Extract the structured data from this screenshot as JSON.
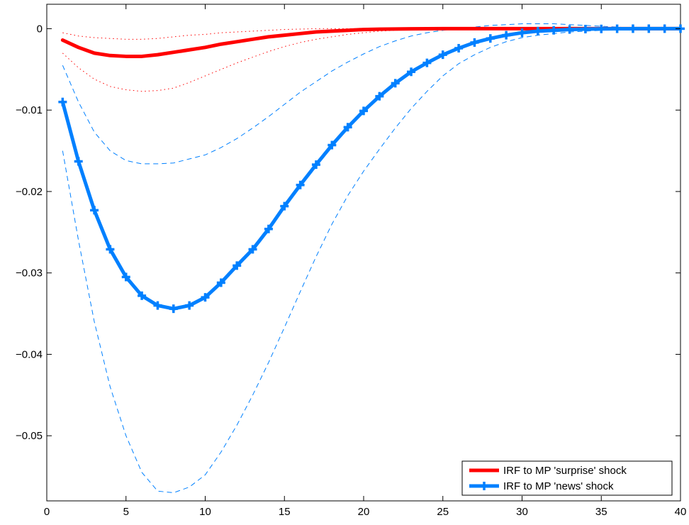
{
  "chart_data": {
    "type": "line",
    "title": "",
    "xlabel": "",
    "ylabel": "",
    "xlim": [
      0,
      40
    ],
    "ylim": [
      -0.058,
      0.003
    ],
    "grid": false,
    "legend_position": "bottom-right",
    "x_ticks": [
      0,
      5,
      10,
      15,
      20,
      25,
      30,
      35,
      40
    ],
    "x_tick_labels": [
      "0",
      "5",
      "10",
      "15",
      "20",
      "25",
      "30",
      "35",
      "40"
    ],
    "y_ticks": [
      0,
      -0.01,
      -0.02,
      -0.03,
      -0.04,
      -0.05
    ],
    "y_tick_labels": [
      "0",
      "−0.01",
      "−0.02",
      "−0.03",
      "−0.04",
      "−0.05"
    ],
    "x": [
      1,
      2,
      3,
      4,
      5,
      6,
      7,
      8,
      9,
      10,
      11,
      12,
      13,
      14,
      15,
      16,
      17,
      18,
      19,
      20,
      21,
      22,
      23,
      24,
      25,
      26,
      27,
      28,
      29,
      30,
      31,
      32,
      33,
      34,
      35,
      36,
      37,
      38,
      39,
      40
    ],
    "series": [
      {
        "name": "IRF to MP 'surprise' shock",
        "color": "#ff0000",
        "style": "solid-thick",
        "marker": "none",
        "values": [
          -0.0014,
          -0.0023,
          -0.003,
          -0.0033,
          -0.0034,
          -0.0034,
          -0.0032,
          -0.0029,
          -0.0026,
          -0.0023,
          -0.0019,
          -0.0016,
          -0.0013,
          -0.001,
          -0.0008,
          -0.0006,
          -0.0004,
          -0.0003,
          -0.0002,
          -0.0001,
          -6e-05,
          -4e-05,
          -2e-05,
          -1e-05,
          0,
          0,
          0,
          0,
          0,
          0,
          0,
          0,
          0,
          0,
          0,
          0,
          0,
          0,
          0,
          0
        ]
      },
      {
        "name": "IRF to MP 'news' shock",
        "color": "#0080ff",
        "style": "solid-thick",
        "marker": "plus",
        "values": [
          -0.009,
          -0.0163,
          -0.0223,
          -0.0271,
          -0.0305,
          -0.0328,
          -0.034,
          -0.0344,
          -0.034,
          -0.033,
          -0.0312,
          -0.0291,
          -0.0271,
          -0.0246,
          -0.0218,
          -0.0192,
          -0.0167,
          -0.0143,
          -0.0121,
          -0.0101,
          -0.0083,
          -0.0067,
          -0.0053,
          -0.0042,
          -0.0032,
          -0.0024,
          -0.0017,
          -0.0012,
          -0.0008,
          -0.0005,
          -0.0003,
          -0.0002,
          -0.0001,
          -5e-05,
          -3e-05,
          -1e-05,
          0,
          0,
          0,
          0
        ]
      }
    ],
    "bands": [
      {
        "of": "IRF to MP 'surprise' shock",
        "color": "#ff0000",
        "style": "dotted",
        "upper": [
          -0.0005,
          -0.0009,
          -0.0011,
          -0.0012,
          -0.0013,
          -0.0013,
          -0.0012,
          -0.001,
          -0.0008,
          -0.0007,
          -0.0005,
          -0.0004,
          -0.0003,
          -0.0002,
          -0.0001,
          -5e-05,
          0,
          0,
          0,
          0,
          0,
          0,
          0,
          0,
          0,
          0,
          0,
          0,
          0,
          0,
          0,
          0,
          0,
          0,
          0,
          0,
          0,
          0,
          0,
          0
        ],
        "lower": [
          -0.003,
          -0.0048,
          -0.0062,
          -0.0071,
          -0.0075,
          -0.0077,
          -0.0076,
          -0.0073,
          -0.0066,
          -0.0058,
          -0.005,
          -0.0042,
          -0.0035,
          -0.0028,
          -0.0022,
          -0.0017,
          -0.0013,
          -0.001,
          -0.0007,
          -0.0005,
          -0.0003,
          -0.0002,
          -0.0001,
          -5e-05,
          0,
          0,
          0,
          0,
          0,
          0,
          0,
          0,
          0,
          0,
          0,
          0,
          0,
          0,
          0,
          0
        ]
      },
      {
        "of": "IRF to MP 'news' shock",
        "color": "#0080ff",
        "style": "dashed",
        "upper": [
          -0.0045,
          -0.009,
          -0.0127,
          -0.015,
          -0.0162,
          -0.0166,
          -0.0166,
          -0.0165,
          -0.016,
          -0.0155,
          -0.0146,
          -0.0135,
          -0.0122,
          -0.0108,
          -0.0093,
          -0.0078,
          -0.0065,
          -0.0052,
          -0.0041,
          -0.0031,
          -0.0022,
          -0.0015,
          -0.0009,
          -0.0005,
          -0.0002,
          0.0,
          0.0002,
          0.0004,
          0.0005,
          0.0006,
          0.0006,
          0.0006,
          0.0005,
          0.0004,
          0.0003,
          0.0002,
          0.0001,
          0.0001,
          0.0,
          0.0
        ],
        "lower": [
          -0.015,
          -0.026,
          -0.036,
          -0.044,
          -0.05,
          -0.0545,
          -0.0568,
          -0.057,
          -0.0563,
          -0.0548,
          -0.052,
          -0.0487,
          -0.045,
          -0.041,
          -0.0367,
          -0.0323,
          -0.028,
          -0.024,
          -0.0205,
          -0.0175,
          -0.0148,
          -0.0122,
          -0.0098,
          -0.0077,
          -0.0058,
          -0.0043,
          -0.0032,
          -0.0023,
          -0.0016,
          -0.0011,
          -0.0008,
          -0.0006,
          -0.0004,
          -0.0003,
          -0.0002,
          -0.0001,
          -5e-05,
          0,
          0,
          0
        ]
      }
    ]
  }
}
